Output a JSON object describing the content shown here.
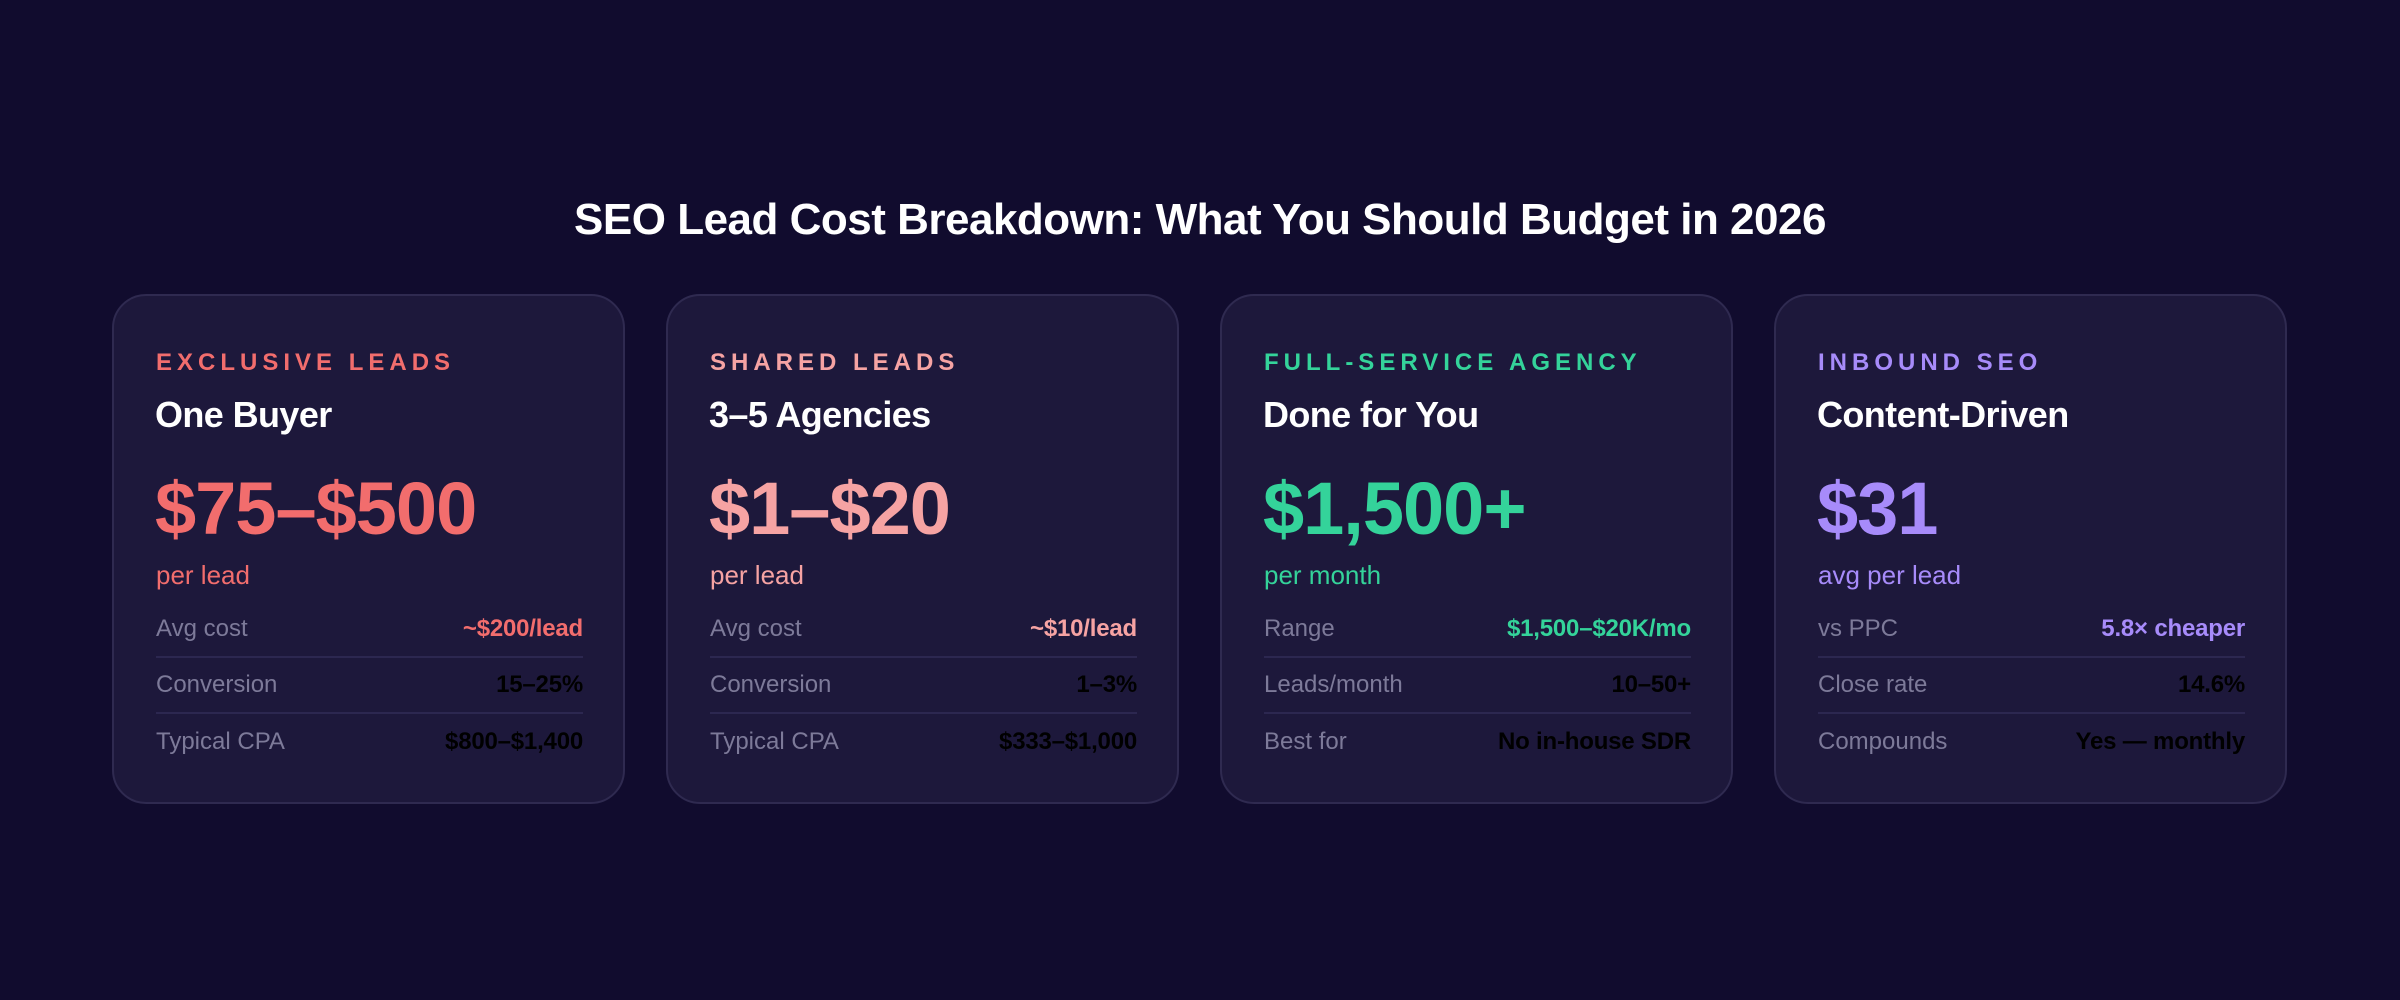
{
  "header": {
    "title": "SEO Lead Cost Breakdown: What You Should Budget in 2026"
  },
  "colors": {
    "background": "#110c2e",
    "card_background": "#1d183b",
    "card_border": "#2f2a50",
    "exclusive": "#f26d6d",
    "shared": "#f6a3a3",
    "agency": "#34d39a",
    "inbound": "#a78bfa",
    "row_label": "#7d7a99",
    "row_value": "#000000"
  },
  "cards": [
    {
      "eyebrow": "Exclusive Leads",
      "subtitle": "One Buyer",
      "price": "$75–$500",
      "unit": "per lead",
      "accent": "#f26d6d",
      "rows": [
        {
          "label": "Avg cost",
          "value": "~$200/lead",
          "highlight": true
        },
        {
          "label": "Conversion",
          "value": "15–25%",
          "highlight": false
        },
        {
          "label": "Typical CPA",
          "value": "$800–$1,400",
          "highlight": false
        }
      ]
    },
    {
      "eyebrow": "Shared Leads",
      "subtitle": "3–5 Agencies",
      "price": "$1–$20",
      "unit": "per lead",
      "accent": "#f6a3a3",
      "rows": [
        {
          "label": "Avg cost",
          "value": "~$10/lead",
          "highlight": true
        },
        {
          "label": "Conversion",
          "value": "1–3%",
          "highlight": false
        },
        {
          "label": "Typical CPA",
          "value": "$333–$1,000",
          "highlight": false
        }
      ]
    },
    {
      "eyebrow": "Full-Service Agency",
      "subtitle": "Done for You",
      "price": "$1,500+",
      "unit": "per month",
      "accent": "#34d39a",
      "rows": [
        {
          "label": "Range",
          "value": "$1,500–$20K/mo",
          "highlight": true
        },
        {
          "label": "Leads/month",
          "value": "10–50+",
          "highlight": false
        },
        {
          "label": "Best for",
          "value": "No in-house SDR",
          "highlight": false
        }
      ]
    },
    {
      "eyebrow": "Inbound SEO",
      "subtitle": "Content-Driven",
      "price": "$31",
      "unit": "avg per lead",
      "accent": "#a78bfa",
      "rows": [
        {
          "label": "vs PPC",
          "value": "5.8× cheaper",
          "highlight": true
        },
        {
          "label": "Close rate",
          "value": "14.6%",
          "highlight": false
        },
        {
          "label": "Compounds",
          "value": "Yes — monthly",
          "highlight": false
        }
      ]
    }
  ]
}
